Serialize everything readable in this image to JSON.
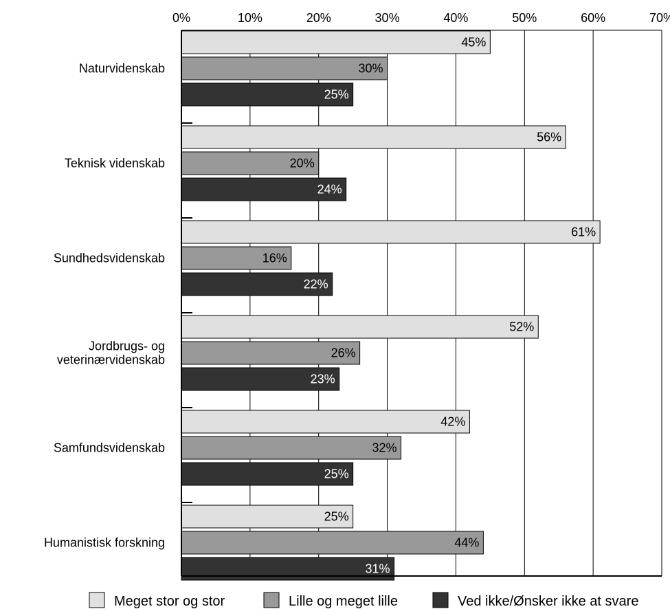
{
  "colors": {
    "series": [
      "#e0e0e0",
      "#999999",
      "#333333"
    ],
    "axis": "#000000",
    "grid": "#000000",
    "background": "#ffffff",
    "label_on_light": "#000000",
    "label_on_dark": "#ffffff"
  },
  "chart_data": {
    "type": "bar",
    "orientation": "horizontal",
    "categories": [
      "Naturvidenskab",
      "Teknisk videnskab",
      "Sundhedsvidenskab",
      "Jordbrugs- og\nveterinærvidenskab",
      "Samfundsvidenskab",
      "Humanistisk forskning"
    ],
    "series": [
      {
        "name": "Meget stor og stor",
        "values": [
          45,
          56,
          61,
          52,
          42,
          25
        ]
      },
      {
        "name": "Lille og meget lille",
        "values": [
          30,
          20,
          16,
          26,
          32,
          44
        ]
      },
      {
        "name": "Ved ikke/Ønsker ikke at svare",
        "values": [
          25,
          24,
          22,
          23,
          25,
          31
        ]
      }
    ],
    "xlim": [
      0,
      70
    ],
    "xticks": [
      "0%",
      "10%",
      "20%",
      "30%",
      "40%",
      "50%",
      "60%",
      "70%"
    ],
    "value_suffix": "%",
    "grid": true,
    "legend_position": "bottom",
    "title": "",
    "xlabel": "",
    "ylabel": ""
  }
}
